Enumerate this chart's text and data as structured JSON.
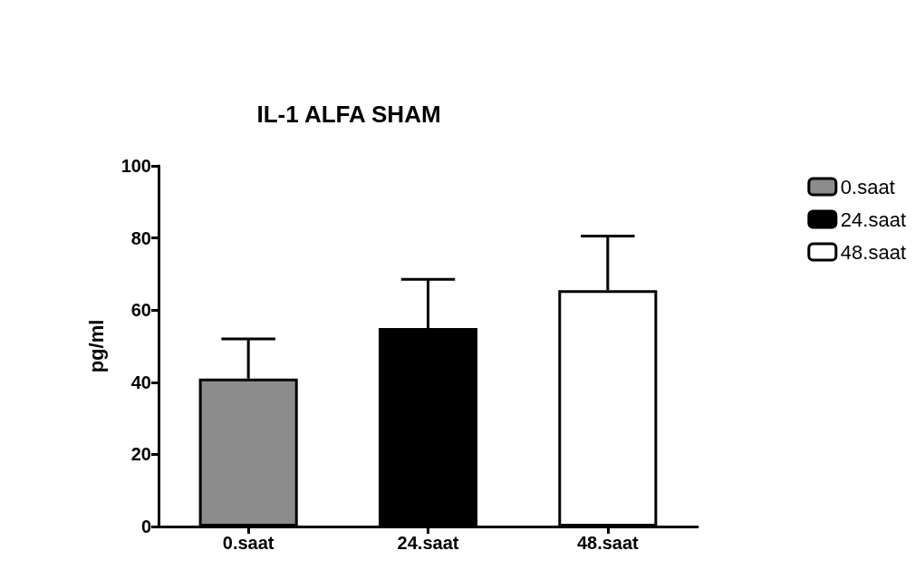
{
  "chart_data": {
    "type": "bar",
    "title": "IL-1 ALFA SHAM",
    "ylabel": "pg/ml",
    "categories": [
      "0.saat",
      "24.saat",
      "48.saat"
    ],
    "series": [
      {
        "name": "0.saat",
        "color": "#8c8c8c",
        "values": [
          41,
          null,
          null
        ],
        "errors": [
          [
            41,
            52
          ],
          null,
          null
        ]
      },
      {
        "name": "24.saat",
        "color": "#000000",
        "values": [
          null,
          55,
          null
        ],
        "errors": [
          null,
          [
            55,
            68.5
          ],
          null
        ]
      },
      {
        "name": "48.saat",
        "color": "#ffffff",
        "values": [
          null,
          null,
          65.5
        ],
        "errors": [
          null,
          null,
          [
            65.5,
            80.5
          ]
        ]
      }
    ],
    "ylim": [
      0,
      100
    ],
    "yticks": [
      0,
      20,
      40,
      60,
      80,
      100
    ],
    "grid": false,
    "legend": "top right"
  }
}
